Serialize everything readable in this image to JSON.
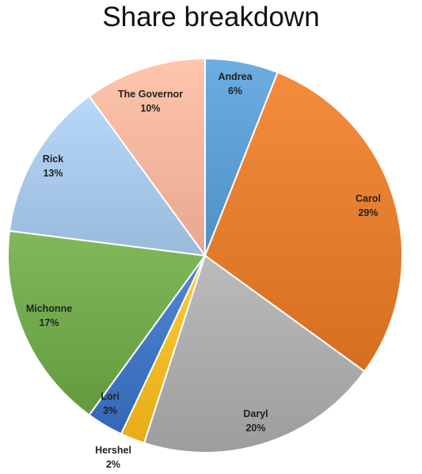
{
  "chart_data": {
    "type": "pie",
    "title": "Share breakdown",
    "slices": [
      {
        "label": "Andrea",
        "value": 6,
        "display": "6%",
        "color": "#5a9bd0"
      },
      {
        "label": "Carol",
        "value": 29,
        "display": "29%",
        "color": "#e27a2c"
      },
      {
        "label": "Daryl",
        "value": 20,
        "display": "20%",
        "color": "#a9a9a9"
      },
      {
        "label": "Hershel",
        "value": 2,
        "display": "2%",
        "color": "#f2b825"
      },
      {
        "label": "Lori",
        "value": 3,
        "display": "3%",
        "color": "#3f74c2"
      },
      {
        "label": "Michonne",
        "value": 17,
        "display": "17%",
        "color": "#6fa64a"
      },
      {
        "label": "Rick",
        "value": 13,
        "display": "13%",
        "color": "#a6c6e8"
      },
      {
        "label": "The Governor",
        "value": 10,
        "display": "10%",
        "color": "#f3b39b"
      }
    ]
  }
}
